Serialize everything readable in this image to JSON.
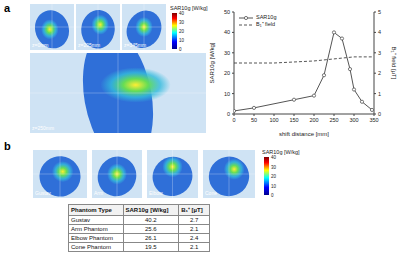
{
  "panel_labels": [
    "a",
    "b"
  ],
  "panel_a": {
    "images": [
      "z=0mm",
      "z=205mm",
      "z=345mm"
    ],
    "main_image": "z=250mm",
    "colorbar": {
      "title": "SAR10g [W/kg]",
      "range": [
        0,
        40
      ],
      "ticks": [
        0,
        10,
        20,
        30,
        40
      ]
    }
  },
  "chart_data": {
    "type": "line",
    "x_label": "shift distance [mm]",
    "y_label": "SAR10g [W/kg]",
    "y2_label": "B₁⁺ field [µT]",
    "xlim": [
      0,
      350
    ],
    "xticks": [
      0,
      50,
      100,
      150,
      200,
      250,
      300,
      350
    ],
    "ylim": [
      0,
      50
    ],
    "yticks": [
      0,
      10,
      20,
      30,
      40,
      50
    ],
    "y2lim": [
      0,
      5
    ],
    "y2ticks": [
      0,
      1,
      2,
      3,
      4,
      5
    ],
    "legend": "upper left",
    "series": [
      {
        "name": "SAR10g",
        "color": "#555555",
        "marker": "circle",
        "line_style": "solid",
        "x": [
          0,
          50,
          150,
          200,
          225,
          250,
          270,
          290,
          300,
          320,
          345
        ],
        "values": [
          1.5,
          3,
          7,
          9,
          19,
          40,
          37,
          22,
          12,
          6,
          2
        ]
      },
      {
        "name": "B₁⁺ field",
        "axis": "y2",
        "color": "#555555",
        "marker": "none",
        "line_style": "dashed",
        "x": [
          0,
          100,
          200,
          250,
          300,
          345
        ],
        "values": [
          2.5,
          2.5,
          2.6,
          2.7,
          2.8,
          2.8
        ]
      }
    ]
  },
  "panel_b": {
    "images": [
      "Gustav",
      "Arm",
      "Elbow",
      "Cone"
    ],
    "colorbar": {
      "title": "SAR10g [W/kg]",
      "range": [
        0,
        40
      ],
      "ticks": [
        0,
        10,
        20,
        30,
        40
      ]
    }
  },
  "table": {
    "header": [
      "Phantom Type",
      "SAR10g [W/kg]",
      "B₁⁺ [µT]"
    ],
    "rows": [
      [
        "Gustav",
        "40.2",
        "2.7"
      ],
      [
        "Arm Phantom",
        "25.6",
        "2.1"
      ],
      [
        "Elbow Phantom",
        "26.1",
        "2.4"
      ],
      [
        "Cone Phantom",
        "19.5",
        "2.1"
      ]
    ]
  }
}
